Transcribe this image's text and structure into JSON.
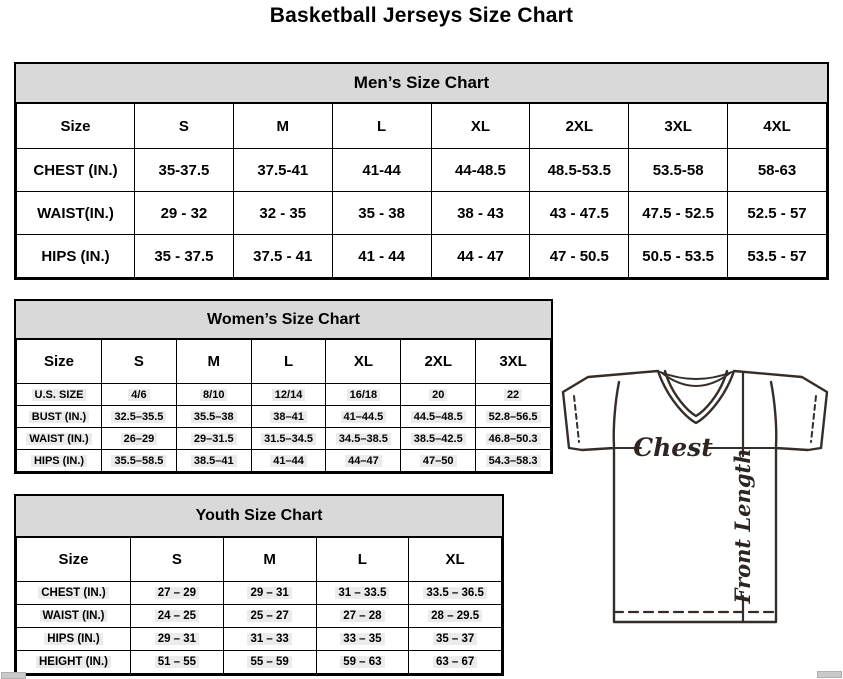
{
  "page": {
    "title": "Basketball Jerseys Size Chart"
  },
  "colors": {
    "header_fill": "#d9d9d9",
    "border": "#000000",
    "diagram_stroke": "#352d28",
    "shade_fill": "#ebebeb"
  },
  "men": {
    "title": "Men’s Size Chart",
    "col_header": [
      "Size",
      "S",
      "M",
      "L",
      "XL",
      "2XL",
      "3XL",
      "4XL"
    ],
    "rows": [
      [
        "CHEST (IN.)",
        "35-37.5",
        "37.5-41",
        "41-44",
        "44-48.5",
        "48.5-53.5",
        "53.5-58",
        "58-63"
      ],
      [
        "WAIST(IN.)",
        "29 - 32",
        "32 - 35",
        "35 - 38",
        "38 - 43",
        "43 - 47.5",
        "47.5 - 52.5",
        "52.5 - 57"
      ],
      [
        "HIPS (IN.)",
        "35 - 37.5",
        "37.5 - 41",
        "41 - 44",
        "44 - 47",
        "47 - 50.5",
        "50.5 - 53.5",
        "53.5 - 57"
      ]
    ]
  },
  "women": {
    "title": "Women’s Size Chart",
    "col_header": [
      "Size",
      "S",
      "M",
      "L",
      "XL",
      "2XL",
      "3XL"
    ],
    "rows": [
      [
        "U.S. SIZE",
        "4/6",
        "8/10",
        "12/14",
        "16/18",
        "20",
        "22"
      ],
      [
        "BUST (IN.)",
        "32.5–35.5",
        "35.5–38",
        "38–41",
        "41–44.5",
        "44.5–48.5",
        "52.8–56.5"
      ],
      [
        "WAIST (IN.)",
        "26–29",
        "29–31.5",
        "31.5–34.5",
        "34.5–38.5",
        "38.5–42.5",
        "46.8–50.3"
      ],
      [
        "HIPS (IN.)",
        "35.5–58.5",
        "38.5–41",
        "41–44",
        "44–47",
        "47–50",
        "54.3–58.3"
      ]
    ]
  },
  "youth": {
    "title": "Youth Size Chart",
    "col_header": [
      "Size",
      "S",
      "M",
      "L",
      "XL"
    ],
    "rows": [
      [
        "CHEST (IN.)",
        "27 – 29",
        "29 – 31",
        "31 – 33.5",
        "33.5 – 36.5"
      ],
      [
        "WAIST (IN.)",
        "24 – 25",
        "25 – 27",
        "27 – 28",
        "28 – 29.5"
      ],
      [
        "HIPS (IN.)",
        "29 – 31",
        "31 – 33",
        "33 – 35",
        "35 – 37"
      ],
      [
        "HEIGHT (IN.)",
        "51 – 55",
        "55 – 59",
        "59 – 63",
        "63 – 67"
      ]
    ]
  },
  "diagram": {
    "chest_label": "Chest",
    "front_length_label": "Front Length"
  }
}
